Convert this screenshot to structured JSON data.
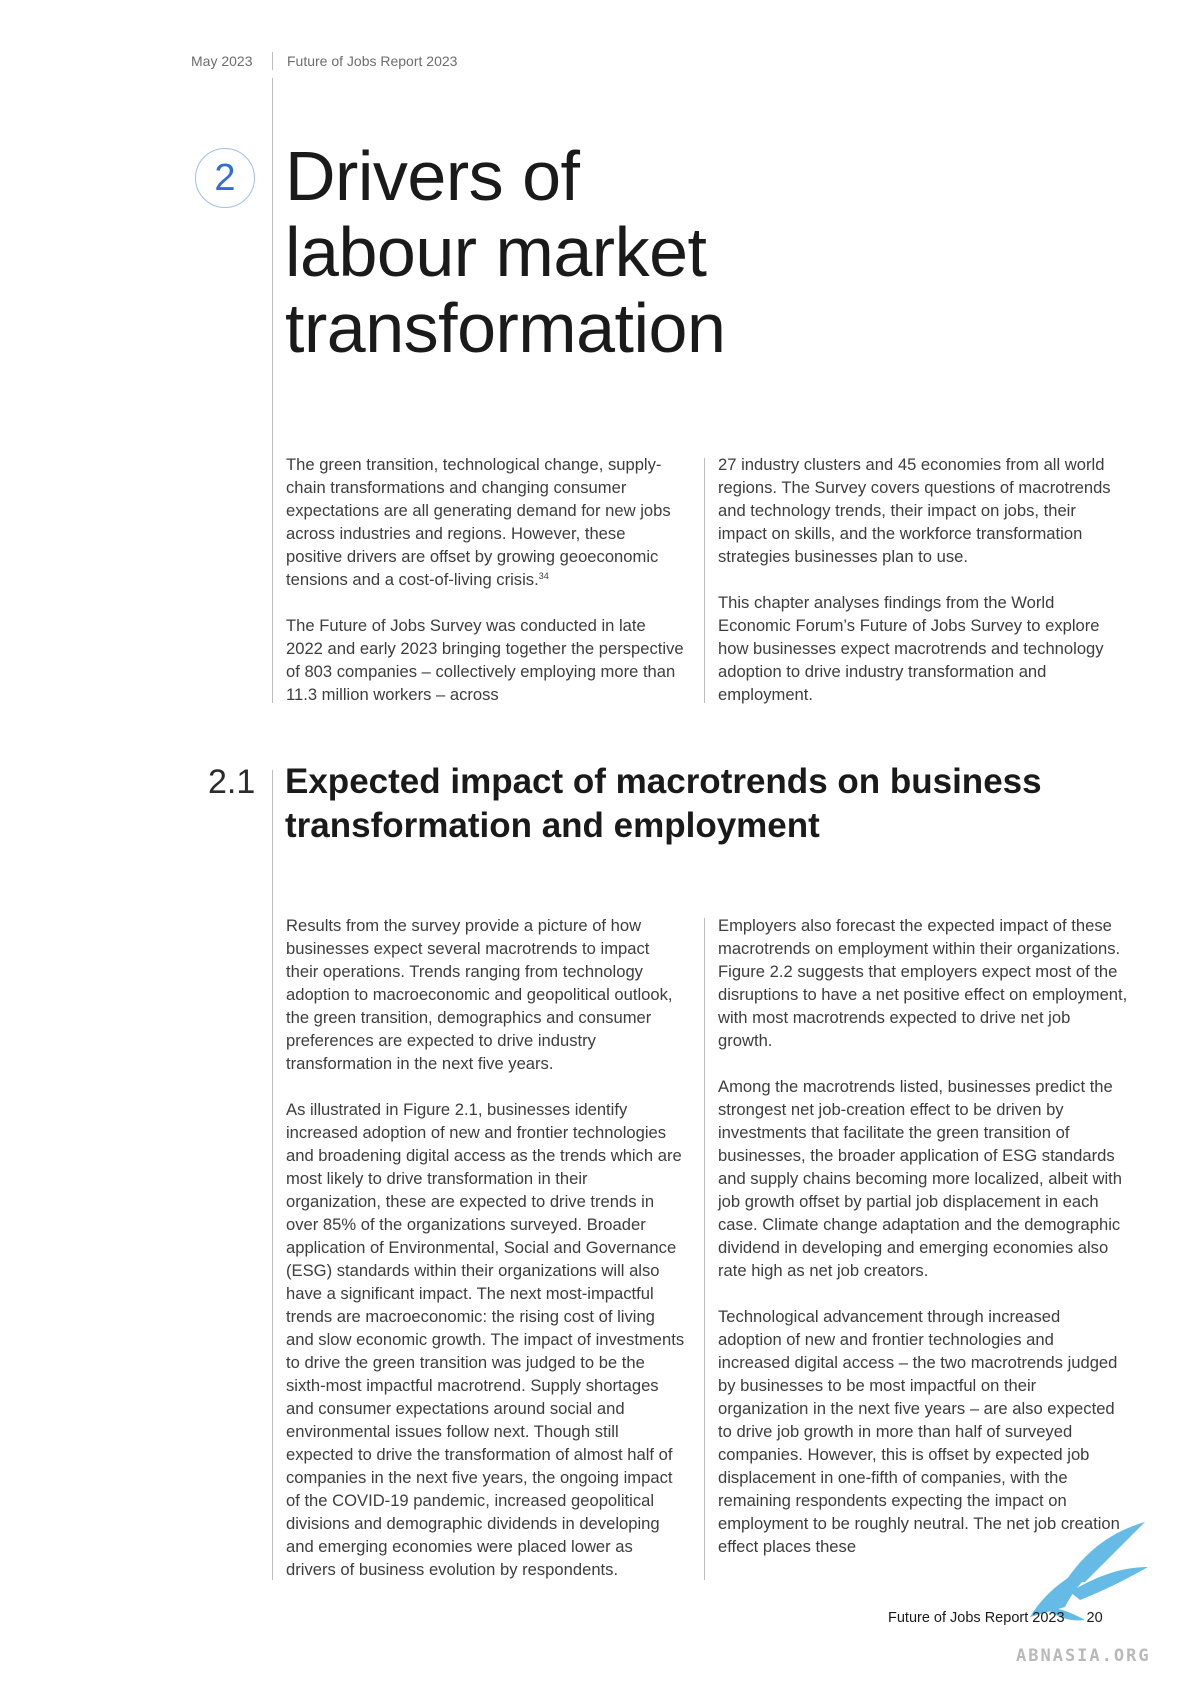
{
  "header": {
    "date": "May 2023",
    "report": "Future of Jobs Report 2023"
  },
  "chapter": {
    "number": "2",
    "title_lines": [
      "Drivers of",
      "labour market",
      "transformation"
    ]
  },
  "intro": {
    "left": {
      "p1": "The green transition, technological change, supply-chain transformations and changing consumer expectations are all generating demand for new jobs across industries and regions. However, these positive drivers are offset by growing geoeconomic tensions and a cost-of-living crisis.",
      "p1_footnote": "34",
      "p2": "The Future of Jobs Survey was conducted in late 2022 and early 2023 bringing together the perspective of 803 companies – collectively employing more than 11.3 million workers – across"
    },
    "right": {
      "p1": "27 industry clusters and 45 economies from all world regions. The Survey covers questions of macrotrends and technology trends, their impact on jobs, their impact on skills, and the workforce transformation strategies businesses plan to use.",
      "p2": "This chapter analyses findings from the World Economic Forum’s Future of Jobs Survey to explore how businesses expect macrotrends and technology adoption to drive industry transformation and employment."
    }
  },
  "section": {
    "number": "2.1",
    "title_lines": [
      "Expected impact of macrotrends on business",
      "transformation and employment"
    ],
    "left": {
      "p1": "Results from the survey provide a picture of how businesses expect several macrotrends to impact their operations. Trends ranging from technology adoption to macroeconomic and geopolitical outlook, the green transition, demographics and consumer preferences are expected to drive industry transformation in the next five years.",
      "p2": "As illustrated in Figure 2.1, businesses identify increased adoption of new and frontier technologies and broadening digital access as the trends which are most likely to drive transformation in their organization, these are expected to drive trends in over 85% of the organizations surveyed. Broader application of Environmental, Social and Governance (ESG) standards within their organizations will also have a significant impact. The next most-impactful trends are macroeconomic: the rising cost of living and slow economic growth. The impact of investments to drive the green transition was judged to be the sixth-most impactful macrotrend. Supply shortages and consumer expectations around social and environmental issues follow next. Though still expected to drive the transformation of almost half of companies in the next five years, the ongoing impact of the COVID-19 pandemic, increased geopolitical divisions and demographic dividends in developing and emerging economies were placed lower as drivers of business evolution by respondents."
    },
    "right": {
      "p1": "Employers also forecast the expected impact of these macrotrends on employment within their organizations. Figure 2.2 suggests that employers expect most of the disruptions to have a net positive effect on employment, with most macrotrends expected to drive net job growth.",
      "p2": "Among the macrotrends listed, businesses predict the strongest net job-creation effect to be driven by investments that facilitate the green transition of businesses, the broader application of ESG standards and supply chains becoming more localized, albeit with job growth offset by partial job displacement in each case. Climate change adaptation and the demographic dividend in developing and emerging economies also rate high as net job creators.",
      "p3": "Technological advancement through increased adoption of new and frontier technologies and increased digital access – the two macrotrends judged by businesses to be most impactful on their organization in the next five years – are also expected to drive job growth in more than half of surveyed companies. However, this is offset by expected job displacement in one-fifth of companies, with the remaining respondents expecting the impact on employment to be roughly neutral. The net job creation effect places these"
    }
  },
  "footer": {
    "report": "Future of Jobs Report 2023",
    "page": "20"
  },
  "watermark": {
    "text": "ABNASIA.ORG",
    "icon": "bird-logo-icon",
    "color": "#3fa9e0"
  }
}
